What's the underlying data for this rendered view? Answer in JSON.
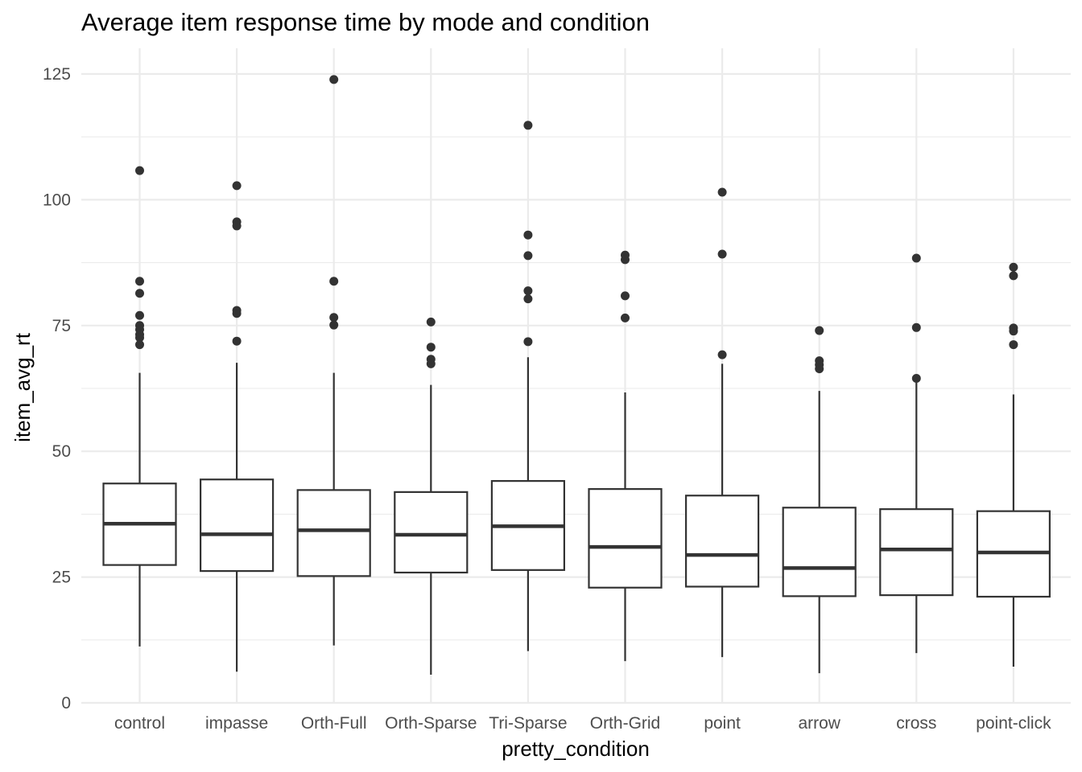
{
  "chart_data": {
    "type": "boxplot",
    "title": "Average item response time by mode and condition",
    "xlabel": "pretty_condition",
    "ylabel": "item_avg_rt",
    "ylim": [
      0,
      130
    ],
    "yticks": [
      0,
      25,
      50,
      75,
      100,
      125
    ],
    "grid": true,
    "legend": "none",
    "categories": [
      "control",
      "impasse",
      "Orth-Full",
      "Orth-Sparse",
      "Tri-Sparse",
      "Orth-Grid",
      "point",
      "arrow",
      "cross",
      "point-click"
    ],
    "boxes": [
      {
        "category": "control",
        "whisker_low": 11.2,
        "q1": 27.4,
        "median": 35.6,
        "q3": 43.6,
        "whisker_high": 65.6,
        "outliers": [
          105.8,
          83.8,
          81.4,
          77.0,
          75.0,
          74.2,
          73.2,
          72.6,
          71.2
        ]
      },
      {
        "category": "impasse",
        "whisker_low": 6.2,
        "q1": 26.2,
        "median": 33.5,
        "q3": 44.4,
        "whisker_high": 67.6,
        "outliers": [
          102.8,
          95.6,
          94.8,
          78.0,
          77.4,
          71.9
        ]
      },
      {
        "category": "Orth-Full",
        "whisker_low": 11.4,
        "q1": 25.2,
        "median": 34.3,
        "q3": 42.3,
        "whisker_high": 65.6,
        "outliers": [
          123.9,
          83.8,
          76.6,
          75.1
        ]
      },
      {
        "category": "Orth-Sparse",
        "whisker_low": 5.6,
        "q1": 25.9,
        "median": 33.4,
        "q3": 41.9,
        "whisker_high": 63.2,
        "outliers": [
          75.7,
          70.7,
          68.3,
          67.4
        ]
      },
      {
        "category": "Tri-Sparse",
        "whisker_low": 10.3,
        "q1": 26.4,
        "median": 35.1,
        "q3": 44.1,
        "whisker_high": 68.7,
        "outliers": [
          114.8,
          93.0,
          88.9,
          81.9,
          80.3,
          71.8
        ]
      },
      {
        "category": "Orth-Grid",
        "whisker_low": 8.3,
        "q1": 22.9,
        "median": 31.0,
        "q3": 42.5,
        "whisker_high": 61.7,
        "outliers": [
          89.0,
          88.1,
          80.9,
          76.5
        ]
      },
      {
        "category": "point",
        "whisker_low": 9.1,
        "q1": 23.1,
        "median": 29.4,
        "q3": 41.2,
        "whisker_high": 67.4,
        "outliers": [
          101.5,
          89.2,
          69.2
        ]
      },
      {
        "category": "arrow",
        "whisker_low": 5.9,
        "q1": 21.2,
        "median": 26.8,
        "q3": 38.8,
        "whisker_high": 62.0,
        "outliers": [
          74.0,
          68.0,
          67.2,
          66.4
        ]
      },
      {
        "category": "cross",
        "whisker_low": 9.9,
        "q1": 21.4,
        "median": 30.5,
        "q3": 38.5,
        "whisker_high": 64.5,
        "outliers": [
          88.4,
          74.6,
          64.5
        ]
      },
      {
        "category": "point-click",
        "whisker_low": 7.2,
        "q1": 21.1,
        "median": 29.9,
        "q3": 38.1,
        "whisker_high": 61.3,
        "outliers": [
          86.6,
          84.9,
          74.5,
          73.9,
          71.2
        ]
      }
    ]
  }
}
